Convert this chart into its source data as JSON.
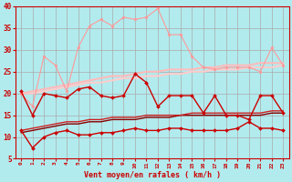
{
  "bg_color": "#b2ebee",
  "grid_color": "#aaaaaa",
  "xlabel": "Vent moyen/en rafales ( km/h )",
  "xlabel_color": "#cc0000",
  "tick_color": "#cc0000",
  "xlim": [
    -0.5,
    23.5
  ],
  "ylim": [
    5,
    40
  ],
  "yticks": [
    5,
    10,
    15,
    20,
    25,
    30,
    35,
    40
  ],
  "xticks": [
    0,
    1,
    2,
    3,
    4,
    5,
    6,
    7,
    8,
    9,
    10,
    11,
    12,
    13,
    14,
    15,
    16,
    17,
    18,
    19,
    20,
    21,
    22,
    23
  ],
  "series": [
    {
      "y": [
        20.0,
        17.0,
        28.5,
        26.5,
        20.5,
        30.5,
        35.5,
        37.0,
        35.5,
        37.5,
        37.0,
        37.5,
        39.5,
        33.5,
        33.5,
        28.5,
        26.0,
        25.5,
        26.0,
        26.0,
        26.0,
        25.0,
        30.5,
        26.5
      ],
      "color": "#ff9999",
      "lw": 0.8,
      "marker": "o",
      "ms": 2.0,
      "zorder": 4
    },
    {
      "y": [
        20.0,
        20.5,
        21.0,
        21.5,
        22.0,
        22.5,
        23.0,
        23.5,
        24.0,
        24.0,
        24.5,
        25.0,
        25.0,
        25.5,
        25.5,
        25.5,
        26.0,
        26.0,
        26.5,
        26.5,
        26.5,
        27.0,
        27.0,
        27.0
      ],
      "color": "#ffbbbb",
      "lw": 1.5,
      "marker": null,
      "ms": 0,
      "zorder": 3
    },
    {
      "y": [
        20.0,
        20.0,
        20.5,
        21.0,
        21.5,
        22.0,
        22.5,
        22.5,
        23.0,
        23.5,
        23.5,
        24.0,
        24.0,
        24.5,
        24.5,
        25.0,
        25.0,
        25.5,
        25.5,
        25.5,
        26.0,
        26.0,
        26.0,
        26.5
      ],
      "color": "#ffcccc",
      "lw": 1.5,
      "marker": null,
      "ms": 0,
      "zorder": 2
    },
    {
      "y": [
        11.5,
        12.0,
        12.5,
        13.0,
        13.5,
        13.5,
        14.0,
        14.0,
        14.5,
        14.5,
        14.5,
        15.0,
        15.0,
        15.0,
        15.0,
        15.5,
        15.5,
        15.5,
        15.5,
        15.5,
        15.5,
        15.5,
        16.0,
        16.0
      ],
      "color": "#cc2222",
      "lw": 1.0,
      "marker": null,
      "ms": 0,
      "zorder": 3
    },
    {
      "y": [
        11.0,
        11.5,
        12.0,
        12.5,
        13.0,
        13.0,
        13.5,
        13.5,
        14.0,
        14.0,
        14.0,
        14.5,
        14.5,
        14.5,
        15.0,
        15.0,
        15.0,
        15.0,
        15.0,
        15.0,
        15.0,
        15.0,
        15.5,
        15.5
      ],
      "color": "#880000",
      "lw": 1.0,
      "marker": null,
      "ms": 0,
      "zorder": 2
    },
    {
      "y": [
        20.5,
        15.0,
        20.0,
        19.5,
        19.0,
        21.0,
        21.5,
        19.5,
        19.0,
        19.5,
        24.5,
        22.5,
        17.0,
        19.5,
        19.5,
        19.5,
        15.5,
        19.5,
        15.0,
        15.0,
        14.0,
        19.5,
        19.5,
        15.5
      ],
      "color": "#cc0000",
      "lw": 1.0,
      "marker": "D",
      "ms": 2.0,
      "zorder": 6
    },
    {
      "y": [
        11.5,
        7.5,
        10.0,
        11.0,
        11.5,
        10.5,
        10.5,
        11.0,
        11.0,
        11.5,
        12.0,
        11.5,
        11.5,
        12.0,
        12.0,
        11.5,
        11.5,
        11.5,
        11.5,
        12.0,
        13.5,
        12.0,
        12.0,
        11.5
      ],
      "color": "#cc0000",
      "lw": 1.0,
      "marker": "D",
      "ms": 2.0,
      "zorder": 6
    }
  ]
}
